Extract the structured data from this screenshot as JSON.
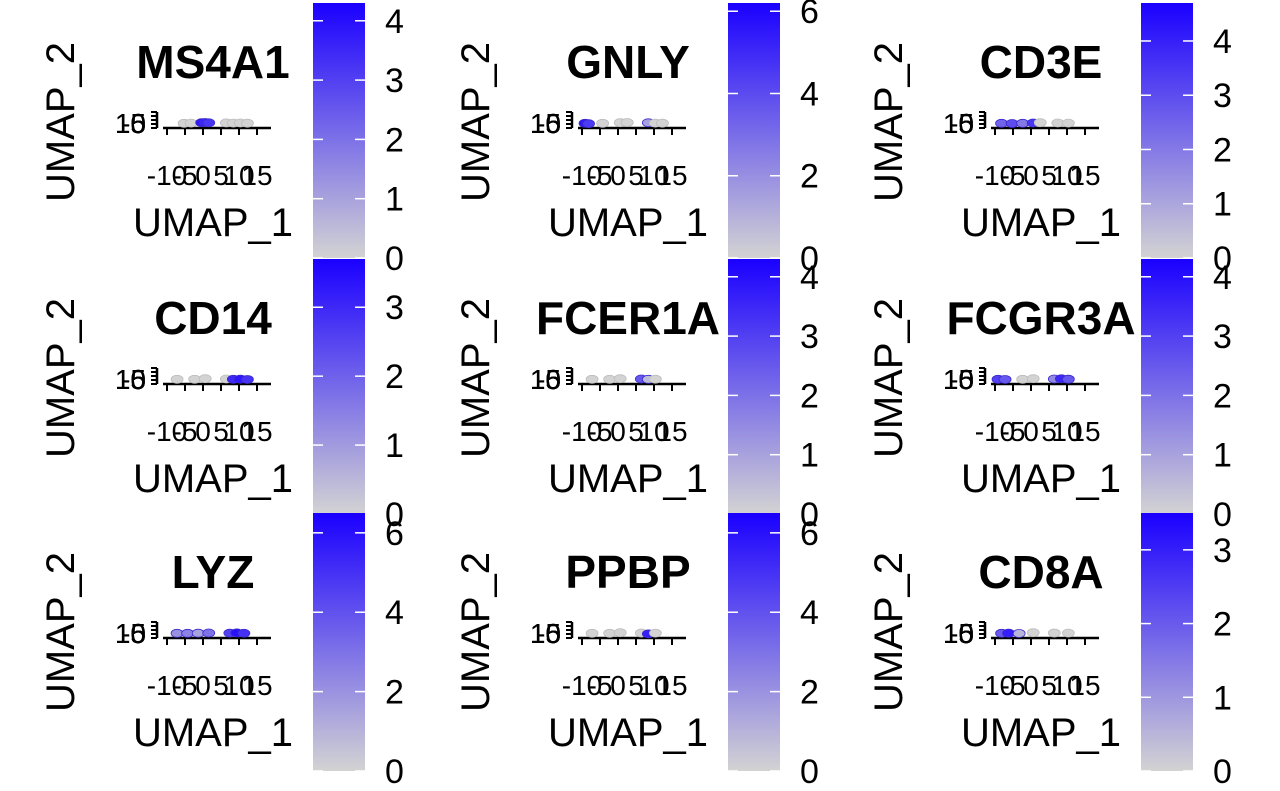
{
  "chart_data": [
    {
      "type": "scatter",
      "title": "MS4A1",
      "xlabel": "UMAP_1",
      "ylabel": "UMAP_2",
      "xticks": [
        "-10",
        "-5",
        "0",
        "5",
        "10",
        "15"
      ],
      "yticks": [
        "-5",
        "0",
        "5",
        "10",
        "15"
      ],
      "colorbar_ticks": [
        "0",
        "1",
        "2",
        "3",
        "4"
      ],
      "colorbar_range": [
        0,
        4.3
      ],
      "color_low": "#d3d3d3",
      "color_high": "#1a00ff",
      "points": [
        {
          "x": -6,
          "y": 0,
          "v": 0
        },
        {
          "x": -4,
          "y": 0.3,
          "v": 0
        },
        {
          "x": -1,
          "y": 1,
          "v": 3.8
        },
        {
          "x": 0,
          "y": 1.2,
          "v": 3.5
        },
        {
          "x": 1,
          "y": 0.9,
          "v": 3.2
        },
        {
          "x": 6,
          "y": 0.6,
          "v": 0
        },
        {
          "x": 8,
          "y": 0.3,
          "v": 0
        },
        {
          "x": 10,
          "y": 0.5,
          "v": 0
        },
        {
          "x": 12,
          "y": 0.2,
          "v": 0
        }
      ]
    },
    {
      "type": "scatter",
      "title": "GNLY",
      "xlabel": "UMAP_1",
      "ylabel": "UMAP_2",
      "xticks": [
        "-10",
        "-5",
        "0",
        "5",
        "10",
        "15"
      ],
      "yticks": [
        "-5",
        "0",
        "5",
        "10",
        "15"
      ],
      "colorbar_ticks": [
        "0",
        "2",
        "4",
        "6"
      ],
      "colorbar_range": [
        0,
        6.2
      ],
      "color_low": "#d3d3d3",
      "color_high": "#1a00ff",
      "points": [
        {
          "x": -10,
          "y": 0,
          "v": 5.5
        },
        {
          "x": -9,
          "y": -0.5,
          "v": 4.5
        },
        {
          "x": -5,
          "y": 0,
          "v": 0
        },
        {
          "x": 0,
          "y": 1,
          "v": 0
        },
        {
          "x": 2,
          "y": 1.2,
          "v": 0
        },
        {
          "x": 8,
          "y": 0.8,
          "v": 1.5
        },
        {
          "x": 10,
          "y": 0.3,
          "v": 0
        },
        {
          "x": 12,
          "y": 0.2,
          "v": 0
        }
      ]
    },
    {
      "type": "scatter",
      "title": "CD3E",
      "xlabel": "UMAP_1",
      "ylabel": "UMAP_2",
      "xticks": [
        "-10",
        "-5",
        "0",
        "5",
        "10",
        "15"
      ],
      "yticks": [
        "-5",
        "0",
        "5",
        "10",
        "15"
      ],
      "colorbar_ticks": [
        "0",
        "1",
        "2",
        "3",
        "4"
      ],
      "colorbar_range": [
        0,
        4.7
      ],
      "color_low": "#d3d3d3",
      "color_high": "#1a00ff",
      "points": [
        {
          "x": -9,
          "y": 0,
          "v": 2.5
        },
        {
          "x": -6,
          "y": -0.3,
          "v": 3
        },
        {
          "x": -3,
          "y": 0,
          "v": 2
        },
        {
          "x": 0,
          "y": 0.5,
          "v": 3.5
        },
        {
          "x": 2,
          "y": 1,
          "v": 0
        },
        {
          "x": 7,
          "y": 0.5,
          "v": 0
        },
        {
          "x": 10,
          "y": 0.3,
          "v": 0
        }
      ]
    },
    {
      "type": "scatter",
      "title": "CD14",
      "xlabel": "UMAP_1",
      "ylabel": "UMAP_2",
      "xticks": [
        "-10",
        "-5",
        "0",
        "5",
        "10",
        "15"
      ],
      "yticks": [
        "-5",
        "0",
        "5",
        "10",
        "15"
      ],
      "colorbar_ticks": [
        "0",
        "1",
        "2",
        "3"
      ],
      "colorbar_range": [
        0,
        3.7
      ],
      "color_low": "#d3d3d3",
      "color_high": "#1a00ff",
      "points": [
        {
          "x": -8,
          "y": 0,
          "v": 0
        },
        {
          "x": -3,
          "y": 0,
          "v": 0
        },
        {
          "x": 0,
          "y": 1,
          "v": 0
        },
        {
          "x": 6,
          "y": 0.5,
          "v": 0
        },
        {
          "x": 8,
          "y": 0,
          "v": 3
        },
        {
          "x": 10,
          "y": 0.2,
          "v": 3.3
        },
        {
          "x": 12,
          "y": -0.2,
          "v": 2.8
        }
      ]
    },
    {
      "type": "scatter",
      "title": "FCER1A",
      "xlabel": "UMAP_1",
      "ylabel": "UMAP_2",
      "xticks": [
        "-10",
        "-5",
        "0",
        "5",
        "10",
        "15"
      ],
      "yticks": [
        "-5",
        "0",
        "5",
        "10",
        "15"
      ],
      "colorbar_ticks": [
        "0",
        "1",
        "2",
        "3",
        "4"
      ],
      "colorbar_range": [
        0,
        4.3
      ],
      "color_low": "#d3d3d3",
      "color_high": "#1a00ff",
      "points": [
        {
          "x": -8,
          "y": 0,
          "v": 0
        },
        {
          "x": -3,
          "y": 0,
          "v": 0
        },
        {
          "x": 0,
          "y": 1,
          "v": 0
        },
        {
          "x": 6,
          "y": 0.5,
          "v": 2.5
        },
        {
          "x": 8,
          "y": 0,
          "v": 0.5
        },
        {
          "x": 10,
          "y": 0.2,
          "v": 0
        }
      ]
    },
    {
      "type": "scatter",
      "title": "FCGR3A",
      "xlabel": "UMAP_1",
      "ylabel": "UMAP_2",
      "xticks": [
        "-10",
        "-5",
        "0",
        "5",
        "10",
        "15"
      ],
      "yticks": [
        "-5",
        "0",
        "5",
        "10",
        "15"
      ],
      "colorbar_ticks": [
        "0",
        "1",
        "2",
        "3",
        "4"
      ],
      "colorbar_range": [
        0,
        4.3
      ],
      "color_low": "#d3d3d3",
      "color_high": "#1a00ff",
      "points": [
        {
          "x": -10,
          "y": 0,
          "v": 3
        },
        {
          "x": -8,
          "y": -0.2,
          "v": 2.5
        },
        {
          "x": -3,
          "y": 0,
          "v": 0
        },
        {
          "x": 0,
          "y": 1,
          "v": 0
        },
        {
          "x": 6,
          "y": 0.5,
          "v": 1.5
        },
        {
          "x": 8,
          "y": 0.8,
          "v": 3.5
        },
        {
          "x": 10,
          "y": 0.2,
          "v": 2.5
        }
      ]
    },
    {
      "type": "scatter",
      "title": "LYZ",
      "xlabel": "UMAP_1",
      "ylabel": "UMAP_2",
      "xticks": [
        "-10",
        "-5",
        "0",
        "5",
        "10",
        "15"
      ],
      "yticks": [
        "-5",
        "0",
        "5",
        "10",
        "15"
      ],
      "colorbar_ticks": [
        "0",
        "2",
        "4",
        "6"
      ],
      "colorbar_range": [
        0,
        6.5
      ],
      "color_low": "#d3d3d3",
      "color_high": "#1a00ff",
      "points": [
        {
          "x": -8,
          "y": 0,
          "v": 2
        },
        {
          "x": -5,
          "y": 0,
          "v": 2.5
        },
        {
          "x": -2,
          "y": 0.2,
          "v": 1.5
        },
        {
          "x": 1,
          "y": 0.5,
          "v": 3
        },
        {
          "x": 7,
          "y": 0.3,
          "v": 4.5
        },
        {
          "x": 9,
          "y": 0.6,
          "v": 6
        },
        {
          "x": 11,
          "y": 0.1,
          "v": 5
        }
      ]
    },
    {
      "type": "scatter",
      "title": "PPBP",
      "xlabel": "UMAP_1",
      "ylabel": "UMAP_2",
      "xticks": [
        "-10",
        "-5",
        "0",
        "5",
        "10",
        "15"
      ],
      "yticks": [
        "-5",
        "0",
        "5",
        "10",
        "15"
      ],
      "colorbar_ticks": [
        "0",
        "2",
        "4",
        "6"
      ],
      "colorbar_range": [
        0,
        6.5
      ],
      "color_low": "#d3d3d3",
      "color_high": "#1a00ff",
      "points": [
        {
          "x": -8,
          "y": 0,
          "v": 0
        },
        {
          "x": -3,
          "y": 0,
          "v": 0
        },
        {
          "x": 0,
          "y": 1,
          "v": 0
        },
        {
          "x": 6,
          "y": 0.4,
          "v": 0
        },
        {
          "x": 8,
          "y": -0.8,
          "v": 5.5
        },
        {
          "x": 10,
          "y": 0.3,
          "v": 0
        }
      ]
    },
    {
      "type": "scatter",
      "title": "CD8A",
      "xlabel": "UMAP_1",
      "ylabel": "UMAP_2",
      "xticks": [
        "-10",
        "-5",
        "0",
        "5",
        "10",
        "15"
      ],
      "yticks": [
        "-5",
        "0",
        "5",
        "10",
        "15"
      ],
      "colorbar_ticks": [
        "0",
        "1",
        "2",
        "3"
      ],
      "colorbar_range": [
        0,
        3.5
      ],
      "color_low": "#d3d3d3",
      "color_high": "#1a00ff",
      "points": [
        {
          "x": -9,
          "y": 0,
          "v": 2
        },
        {
          "x": -7,
          "y": 0.2,
          "v": 3
        },
        {
          "x": -4,
          "y": -0.2,
          "v": 0.5
        },
        {
          "x": 0,
          "y": 1,
          "v": 0
        },
        {
          "x": 6,
          "y": 0.4,
          "v": 0
        },
        {
          "x": 10,
          "y": 0.3,
          "v": 0
        }
      ]
    }
  ]
}
